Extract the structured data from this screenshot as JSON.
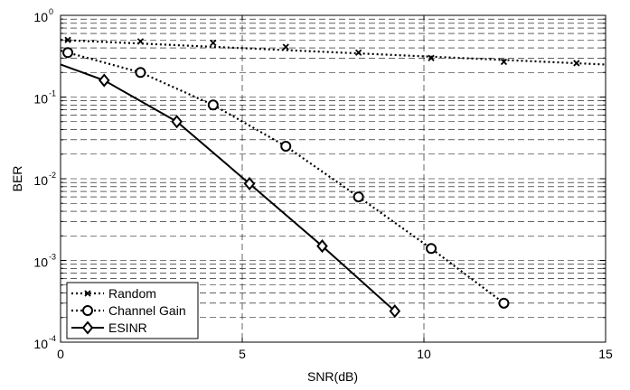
{
  "chart_data": {
    "type": "line",
    "title": "",
    "xlabel": "SNR(dB)",
    "ylabel": "BER",
    "xlim": [
      0,
      15
    ],
    "ylim": [
      0.0001,
      1
    ],
    "yscale": "log",
    "grid": true,
    "legend_position": "bottom-left",
    "x_ticks": [
      "0",
      "5",
      "10",
      "15"
    ],
    "y_ticks": [
      {
        "base": "10",
        "exp": "-4"
      },
      {
        "base": "10",
        "exp": "-3"
      },
      {
        "base": "10",
        "exp": "-2"
      },
      {
        "base": "10",
        "exp": "-1"
      },
      {
        "base": "10",
        "exp": "0"
      }
    ],
    "series": [
      {
        "name": "Random",
        "line_style": "dotted",
        "marker": "x",
        "x": [
          0.2,
          2.2,
          4.2,
          6.2,
          8.2,
          10.2,
          12.2,
          14.2
        ],
        "y": [
          0.5,
          0.48,
          0.46,
          0.41,
          0.35,
          0.3,
          0.27,
          0.26
        ],
        "curve_x": [
          0,
          15
        ],
        "curve_y": [
          0.5,
          0.25
        ]
      },
      {
        "name": "Channel Gain",
        "line_style": "dotted",
        "marker": "circle",
        "x": [
          0.2,
          2.2,
          4.2,
          6.2,
          8.2,
          10.2,
          12.2
        ],
        "y": [
          0.35,
          0.2,
          0.08,
          0.025,
          0.006,
          0.0014,
          0.0003
        ],
        "curve_x": [
          0
        ],
        "curve_y": [
          0.37
        ]
      },
      {
        "name": "ESINR",
        "line_style": "solid",
        "marker": "diamond",
        "x": [
          1.2,
          3.2,
          5.2,
          7.2,
          9.2
        ],
        "y": [
          0.16,
          0.05,
          0.0087,
          0.0015,
          0.00024
        ],
        "curve_x": [
          0
        ],
        "curve_y": [
          0.25
        ]
      }
    ]
  }
}
